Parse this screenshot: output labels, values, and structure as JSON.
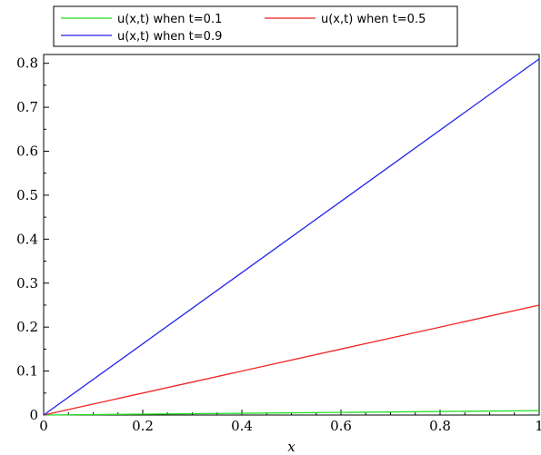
{
  "chart_data": {
    "type": "line",
    "xlabel": "x",
    "ylabel": "",
    "xlim": [
      0,
      1
    ],
    "ylim": [
      0,
      0.82
    ],
    "x_ticks": [
      0,
      0.2,
      0.4,
      0.6,
      0.8,
      1
    ],
    "x_tick_labels": [
      "0",
      "0.2",
      "0.4",
      "0.6",
      "0.8",
      "1"
    ],
    "y_ticks": [
      0,
      0.1,
      0.2,
      0.3,
      0.4,
      0.5,
      0.6,
      0.7,
      0.8
    ],
    "y_tick_labels": [
      "0",
      "0.1",
      "0.2",
      "0.3",
      "0.4",
      "0.5",
      "0.6",
      "0.7",
      "0.8"
    ],
    "grid": false,
    "legend_position": "top",
    "series": [
      {
        "name": "u(x,t) when t=0.1",
        "color": "#22dd22",
        "x": [
          0,
          1
        ],
        "y": [
          0,
          0.01
        ]
      },
      {
        "name": "u(x,t) when t=0.5",
        "color": "#ee2222",
        "x": [
          0,
          1
        ],
        "y": [
          0,
          0.25
        ]
      },
      {
        "name": "u(x,t) when t=0.9",
        "color": "#2222ee",
        "x": [
          0,
          1
        ],
        "y": [
          0,
          0.81
        ]
      }
    ]
  }
}
